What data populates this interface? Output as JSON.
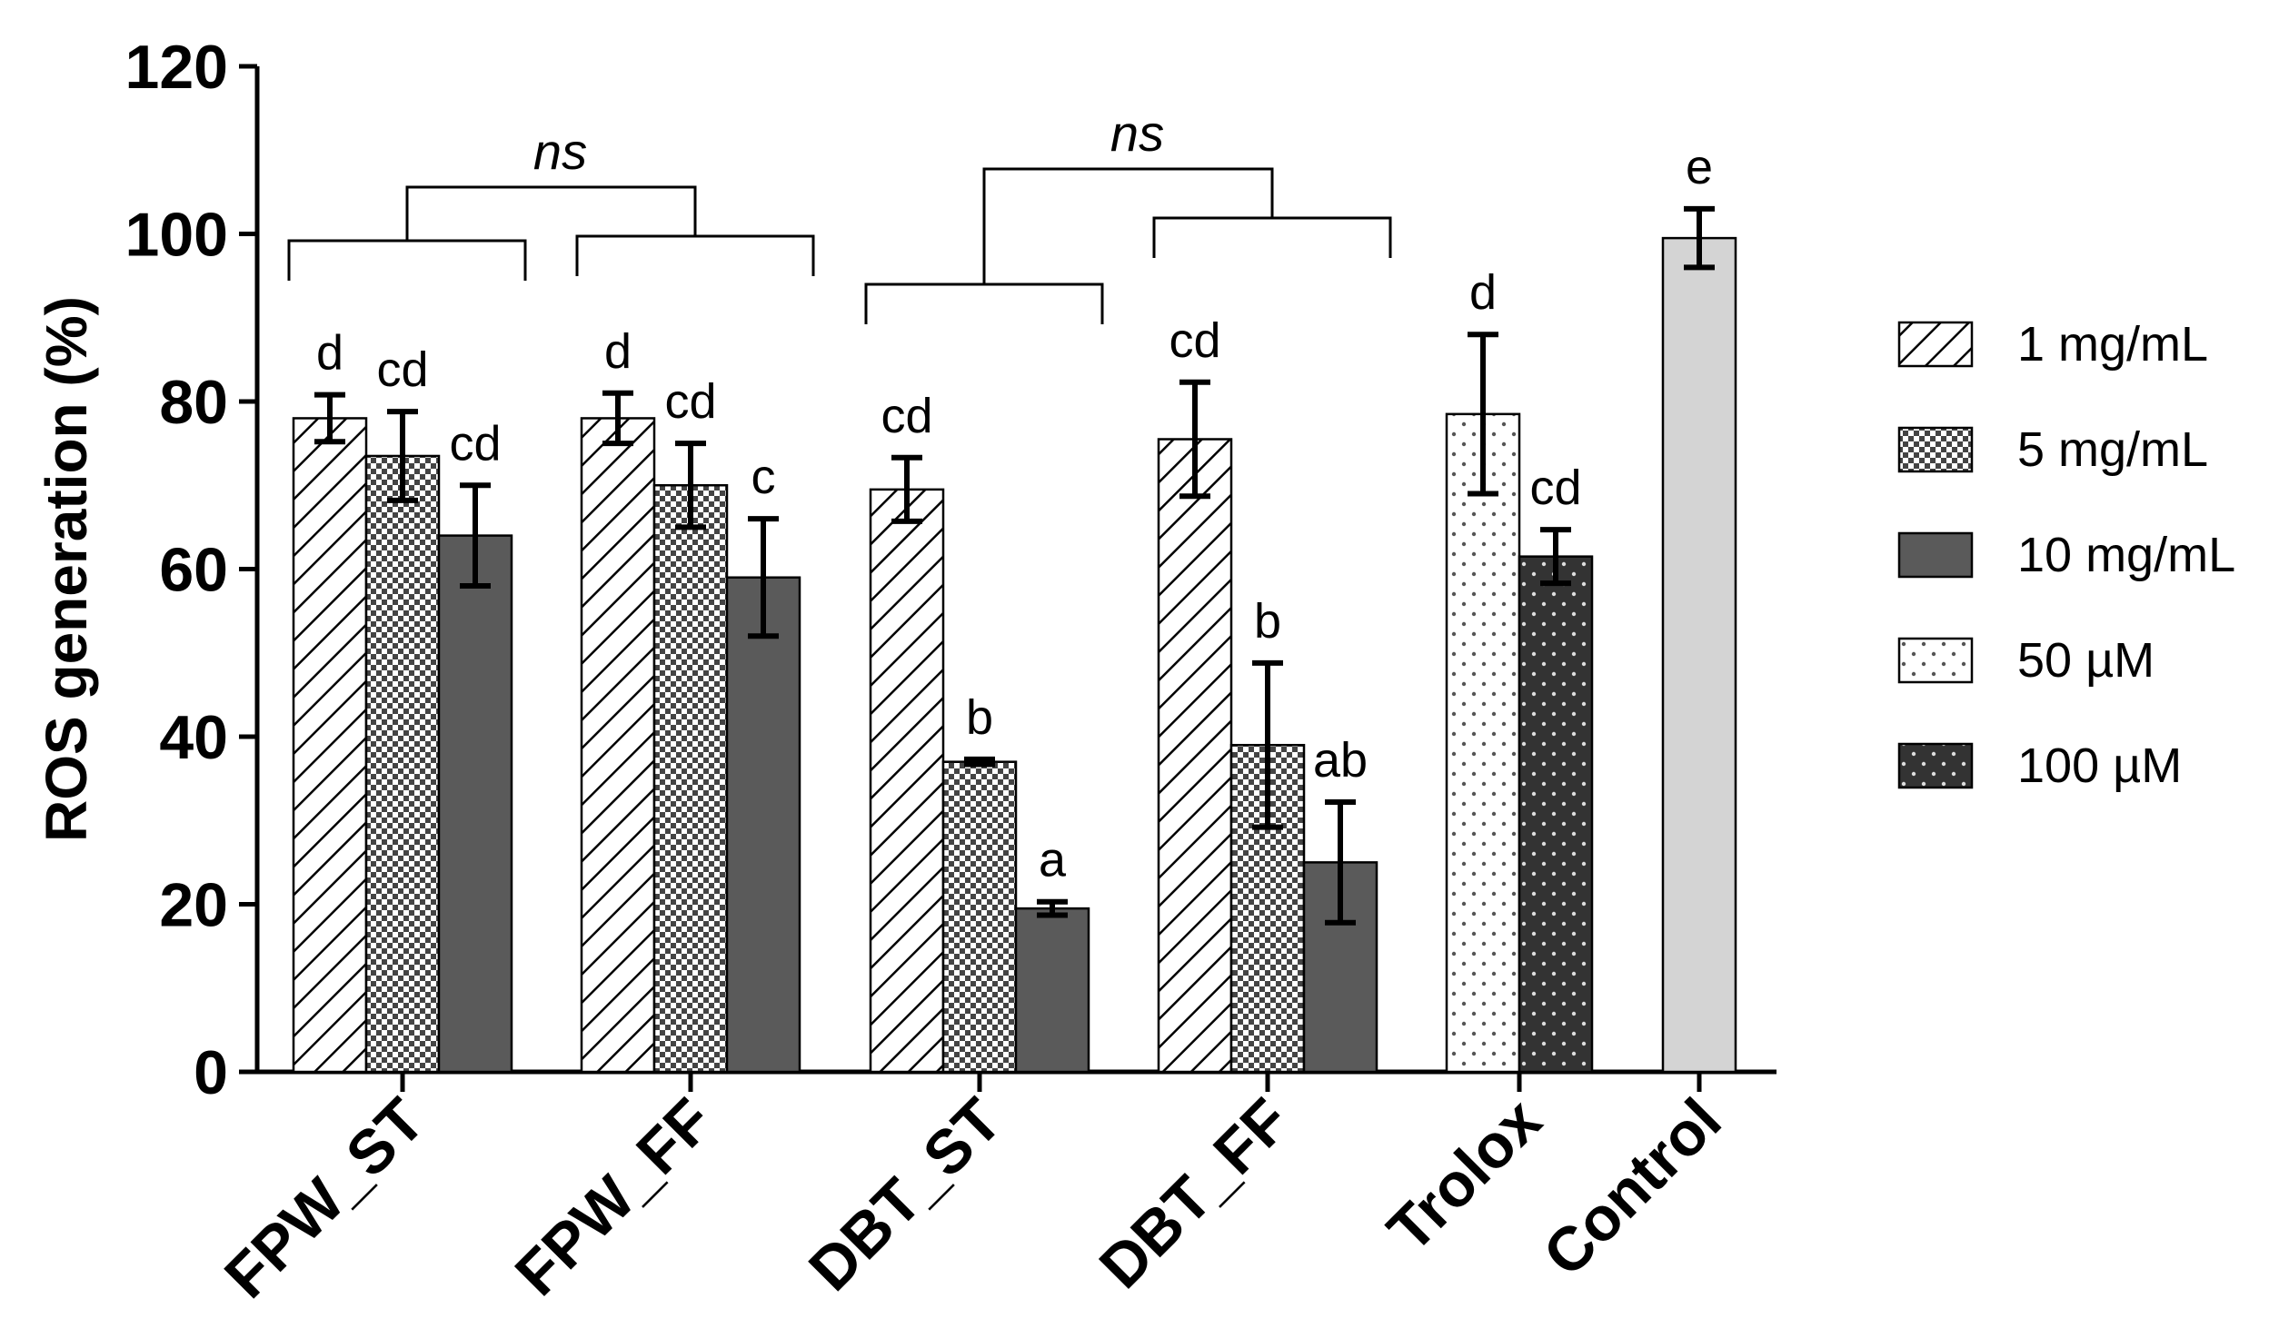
{
  "chart_data": {
    "type": "bar",
    "title": "",
    "xlabel": "",
    "ylabel": "ROS generation (%)",
    "ylim": [
      0,
      120
    ],
    "yticks": [
      "0",
      "20",
      "40",
      "60",
      "80",
      "100",
      "120"
    ],
    "grid": false,
    "legend_position": "right",
    "categories": [
      "FPW_ST",
      "FPW_FF",
      "DBT_ST",
      "DBT_FF",
      "Trolox",
      "Control"
    ],
    "legend": [
      {
        "label": "1 mg/mL",
        "pattern": "diagonal"
      },
      {
        "label": "5 mg/mL",
        "pattern": "checker"
      },
      {
        "label": "10 mg/mL",
        "pattern": "solid-dark"
      },
      {
        "label": "50 µM",
        "pattern": "dots-light"
      },
      {
        "label": "100 µM",
        "pattern": "dots-dark"
      }
    ],
    "groups": [
      {
        "category": "FPW_ST",
        "bars": [
          {
            "series": "1 mg/mL",
            "value": 78,
            "error": 2.8,
            "letter": "d"
          },
          {
            "series": "5 mg/mL",
            "value": 73.5,
            "error": 5.3,
            "letter": "cd"
          },
          {
            "series": "10 mg/mL",
            "value": 64,
            "error": 6,
            "letter": "cd"
          }
        ]
      },
      {
        "category": "FPW_FF",
        "bars": [
          {
            "series": "1 mg/mL",
            "value": 78,
            "error": 3,
            "letter": "d"
          },
          {
            "series": "5 mg/mL",
            "value": 70,
            "error": 5,
            "letter": "cd"
          },
          {
            "series": "10 mg/mL",
            "value": 59,
            "error": 7,
            "letter": "c"
          }
        ]
      },
      {
        "category": "DBT_ST",
        "bars": [
          {
            "series": "1 mg/mL",
            "value": 69.5,
            "error": 3.8,
            "letter": "cd"
          },
          {
            "series": "5 mg/mL",
            "value": 37,
            "error": 0.3,
            "letter": "b"
          },
          {
            "series": "10 mg/mL",
            "value": 19.5,
            "error": 0.8,
            "letter": "a"
          }
        ]
      },
      {
        "category": "DBT_FF",
        "bars": [
          {
            "series": "1 mg/mL",
            "value": 75.5,
            "error": 6.8,
            "letter": "cd"
          },
          {
            "series": "5 mg/mL",
            "value": 39,
            "error": 9.8,
            "letter": "b"
          },
          {
            "series": "10 mg/mL",
            "value": 25,
            "error": 7.2,
            "letter": "ab"
          }
        ]
      },
      {
        "category": "Trolox",
        "bars": [
          {
            "series": "50 µM",
            "value": 78.5,
            "error": 9.5,
            "letter": "d"
          },
          {
            "series": "100 µM",
            "value": 61.5,
            "error": 3.2,
            "letter": "cd"
          }
        ]
      },
      {
        "category": "Control",
        "bars": [
          {
            "series": "Control",
            "value": 99.5,
            "error": 3.5,
            "letter": "e"
          }
        ]
      }
    ],
    "annotations": [
      {
        "text": "ns",
        "compares": [
          "FPW_ST",
          "FPW_FF"
        ]
      },
      {
        "text": "ns",
        "compares": [
          "DBT_ST",
          "DBT_FF"
        ]
      }
    ]
  }
}
